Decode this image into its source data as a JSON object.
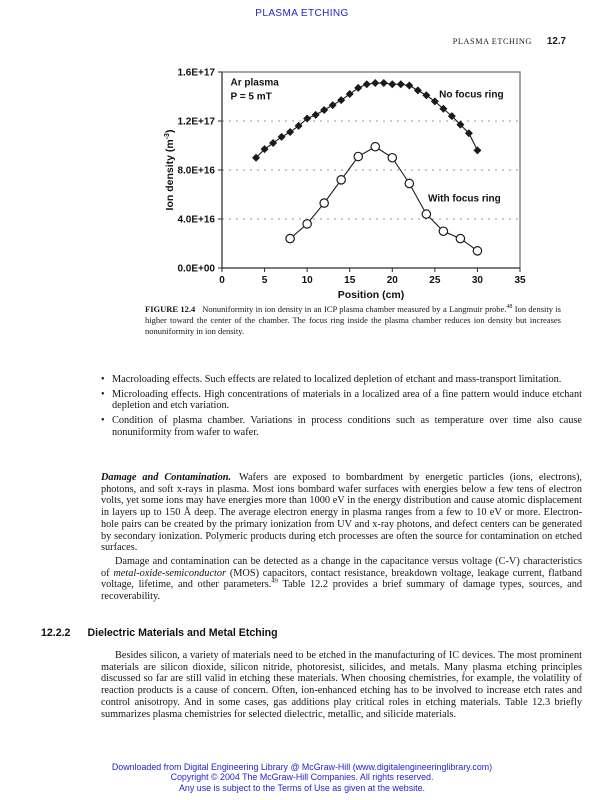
{
  "colors": {
    "accent_blue": "#2323cf",
    "text_black": "#141414"
  },
  "header": {
    "top_title": "PLASMA ETCHING",
    "running_title": "PLASMA ETCHING",
    "page_number": "12.7"
  },
  "chart_data": {
    "type": "line",
    "xlabel": "Position (cm)",
    "ylabel_main": "Ion density (m",
    "ylabel_sup": "-3",
    "ylabel_close": ")",
    "xlim": [
      0,
      35
    ],
    "ylim": [
      0,
      1.6e+17
    ],
    "x_ticks": {
      "values": [
        0,
        5,
        10,
        15,
        20,
        25,
        30,
        35
      ],
      "labels": [
        "0",
        "5",
        "10",
        "15",
        "20",
        "25",
        "30",
        "35"
      ]
    },
    "y_ticks": {
      "values": [
        0,
        4e+16,
        8e+16,
        1.2e+17,
        1.6e+17
      ],
      "labels": [
        "0.0E+00",
        "4.0E+16",
        "8.0E+16",
        "1.2E+17",
        "1.6E+17"
      ]
    },
    "grid_y": [
      4e+16,
      8e+16,
      1.2e+17
    ],
    "grid_on": true,
    "legend_position": "inline-annotations",
    "series": [
      {
        "name": "No focus ring",
        "marker": "diamond",
        "color": "#1a1a1a",
        "x": [
          4,
          5,
          6,
          7,
          8,
          9,
          10,
          11,
          12,
          13,
          14,
          15,
          16,
          17,
          18,
          19,
          20,
          21,
          22,
          23,
          24,
          25,
          26,
          27,
          28,
          29,
          30
        ],
        "y": [
          9e+16,
          9.7e+16,
          1.02e+17,
          1.07e+17,
          1.11e+17,
          1.16e+17,
          1.22e+17,
          1.25e+17,
          1.29e+17,
          1.33e+17,
          1.37e+17,
          1.42e+17,
          1.47e+17,
          1.5e+17,
          1.51e+17,
          1.51e+17,
          1.5e+17,
          1.5e+17,
          1.49e+17,
          1.45e+17,
          1.41e+17,
          1.36e+17,
          1.3e+17,
          1.24e+17,
          1.17e+17,
          1.1e+17,
          9.6e+16
        ]
      },
      {
        "name": "With focus ring",
        "marker": "circle",
        "color": "#1a1a1a",
        "x": [
          8,
          10,
          12,
          14,
          16,
          18,
          20,
          22,
          24,
          26,
          28,
          30
        ],
        "y": [
          2.4e+16,
          3.6e+16,
          5.3e+16,
          7.2e+16,
          9.1e+16,
          9.9e+16,
          9e+16,
          6.9e+16,
          4.4e+16,
          3e+16,
          2.4e+16,
          1.4e+16
        ]
      }
    ],
    "annotations": [
      {
        "text": "Ar plasma",
        "x": 1.0,
        "y": 1.52e+17
      },
      {
        "text": "P = 5 mT",
        "x": 1.0,
        "y": 1.405e+17
      },
      {
        "text": "No focus ring",
        "x": 25.5,
        "y": 1.42e+17
      },
      {
        "text": "With focus ring",
        "x": 24.2,
        "y": 5.7e+16
      }
    ]
  },
  "figure": {
    "caption_label": "FIGURE 12.4",
    "caption_sentence1": "Nonuniformity in ion density in an ICP plasma chamber measured by a Langmuir probe.",
    "caption_ref": "48",
    "caption_rest": " Ion density is higher toward the center of the chamber. The focus ring inside the plasma chamber reduces ion density but increases nonuniformity in ion density."
  },
  "bullets": [
    "Macroloading effects. Such effects are related to localized depletion of etchant and mass-transport limitation.",
    "Microloading effects. High concentrations of materials in a localized area of a fine pattern would induce etchant depletion and etch variation.",
    "Condition of plasma chamber. Variations in process conditions such as temperature over time also cause nonuniformity from wafer to wafer."
  ],
  "bullet_marker": "•",
  "damage": {
    "heading": "Damage and Contamination.",
    "body": "Wafers are exposed to bombardment by energetic particles (ions, electrons), photons, and soft x-rays in plasma. Most ions bombard wafer surfaces with energies below a few tens of electron volts, yet some ions may have energies more than 1000 eV in the energy distribution and cause atomic displacement in layers up to 150 Å deep. The average electron energy in plasma ranges from a few to 10 eV or more. Electron-hole pairs can be created by the primary ionization from UV and x-ray photons, and defect centers can be generated by secondary ionization. Polymeric products during etch processes are often the source for contamination on etched surfaces.",
    "para2_a": "Damage and contamination can be detected as a change in the capacitance versus voltage (C-V) characteristics of ",
    "para2_italic": "metal-oxide-semiconductor",
    "para2_b": " (MOS) capacitors, contact resistance, breakdown voltage, leakage current, flatband voltage, lifetime, and other parameters.",
    "para2_ref": "49",
    "para2_c": " Table 12.2 provides a brief summary of damage types, sources, and recoverability."
  },
  "section": {
    "number": "12.2.2",
    "title": "Dielectric Materials and Metal Etching",
    "body": "Besides silicon, a variety of materials need to be etched in the manufacturing of IC devices. The most prominent materials are silicon dioxide, silicon nitride, photoresist, silicides, and metals. Many plasma etching principles discussed so far are still valid in etching these materials. When choosing chemistries, for example, the volatility of reaction products is a cause of concern. Often, ion-enhanced etching has to be involved to increase etch rates and control anisotropy. And in some cases, gas additions play critical roles in etching materials. Table 12.3 briefly summarizes plasma chemistries for selected dielectric, metallic, and silicide materials."
  },
  "footer": {
    "line1": "Downloaded from Digital Engineering Library @ McGraw-Hill (www.digitalengineeringlibrary.com)",
    "line2": "Copyright © 2004 The McGraw-Hill Companies. All rights reserved.",
    "line3": "Any use is subject to the Terms of Use as given at the website."
  }
}
